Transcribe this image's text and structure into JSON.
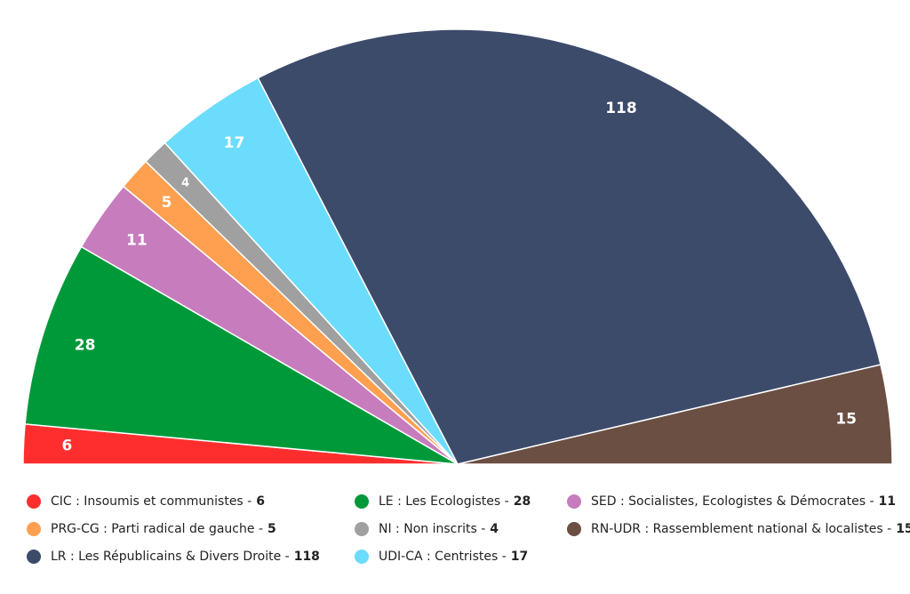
{
  "chart_data": {
    "type": "pie",
    "shape": "semicircle",
    "categories": [
      "CIC : Insoumis et communistes -",
      "LE : Les Ecologistes -",
      "SED : Socialistes, Ecologistes & Démocrates -",
      "PRG-CG : Parti radical de gauche -",
      "NI : Non inscrits -",
      "UDI-CA : Centristes -",
      "LR : Les Républicains & Divers Droite -",
      "RN-UDR : Rassemblement national & localistes -"
    ],
    "values": [
      6,
      28,
      11,
      5,
      4,
      17,
      118,
      15
    ],
    "colors": [
      "#ff2e2e",
      "#00993a",
      "#c77dbd",
      "#ffa050",
      "#a0a0a0",
      "#6cdcfc",
      "#3d4b6b",
      "#6b4f43"
    ]
  }
}
